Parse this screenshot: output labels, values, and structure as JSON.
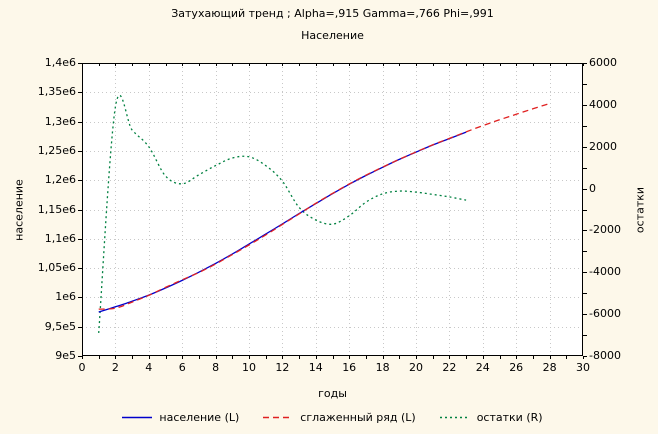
{
  "page": {
    "background": "#fdf8ea",
    "plot_background": "#ffffff",
    "frame_color": "#000000",
    "grid_color": "#c8c8c8",
    "text_color": "#000000"
  },
  "chart_data": {
    "type": "line",
    "title": "Затухающий тренд ; Alpha=,915 Gamma=,766 Phi=,991",
    "subtitle": "Население",
    "xlabel": "годы",
    "ylabel_left": "население",
    "ylabel_right": "остатки",
    "xlim": [
      0,
      30
    ],
    "ylim_left": [
      900000,
      1400000
    ],
    "ylim_right": [
      -8000,
      6000
    ],
    "grid": "dotted",
    "legend_position": "bottom",
    "x_ticks": {
      "values": [
        0,
        2,
        4,
        6,
        8,
        10,
        12,
        14,
        16,
        18,
        20,
        22,
        24,
        26,
        28,
        30
      ],
      "labels": [
        "0",
        "2",
        "4",
        "6",
        "8",
        "10",
        "12",
        "14",
        "16",
        "18",
        "20",
        "22",
        "24",
        "26",
        "28",
        "30"
      ],
      "minor_step": 1
    },
    "left_ticks": {
      "values": [
        1400000,
        1350000,
        1300000,
        1250000,
        1200000,
        1150000,
        1100000,
        1050000,
        1000000,
        950000,
        900000
      ],
      "labels": [
        "1,4e6",
        "1,35e6",
        "1,3e6",
        "1,25e6",
        "1,2e6",
        "1,15e6",
        "1,1e6",
        "1,05e6",
        "1e6",
        "9,5e5",
        "9e5"
      ]
    },
    "right_ticks": {
      "values": [
        6000,
        4000,
        2000,
        0,
        -2000,
        -4000,
        -6000,
        -8000
      ],
      "labels": [
        "6000",
        "4000",
        "2000",
        "0",
        "-2000",
        "-4000",
        "-6000",
        "-8000"
      ],
      "minor_step": 1000
    },
    "series": [
      {
        "id": "ostatki",
        "name": "остатки (R)",
        "axis": "right",
        "style": "dotted",
        "color": "#008040",
        "x": [
          1,
          2,
          3,
          4,
          5,
          6,
          7,
          8,
          9,
          10,
          11,
          12,
          13,
          14,
          15,
          16,
          17,
          18,
          19,
          20,
          21,
          22,
          23
        ],
        "values": [
          -6900,
          3900,
          2800,
          2000,
          600,
          230,
          660,
          1100,
          1460,
          1520,
          1100,
          350,
          -900,
          -1500,
          -1700,
          -1300,
          -650,
          -250,
          -120,
          -170,
          -280,
          -400,
          -550
        ]
      },
      {
        "id": "naselenie",
        "name": "население (L)",
        "axis": "left",
        "style": "solid",
        "color": "#0000cc",
        "x": [
          1,
          2,
          3,
          4,
          5,
          6,
          7,
          8,
          9,
          10,
          11,
          12,
          13,
          14,
          15,
          16,
          17,
          18,
          19,
          20,
          21,
          22,
          23
        ],
        "values": [
          975000,
          984000,
          993500,
          1004000,
          1016000,
          1029000,
          1043000,
          1058000,
          1074000,
          1091000,
          1108000,
          1125500,
          1143000,
          1160000,
          1177000,
          1193000,
          1208000,
          1222000,
          1235500,
          1248000,
          1260000,
          1271000,
          1282000
        ]
      },
      {
        "id": "sglazhenny-ryad",
        "name": "сглаженный ряд (L)",
        "axis": "left",
        "style": "dashed",
        "color": "#e02020",
        "x": [
          1,
          2,
          3,
          4,
          5,
          6,
          7,
          8,
          9,
          10,
          11,
          12,
          13,
          14,
          15,
          16,
          17,
          18,
          19,
          20,
          21,
          22,
          23,
          24,
          25,
          26,
          27,
          28
        ],
        "values": [
          980000,
          981500,
          992000,
          1003500,
          1017000,
          1030000,
          1042500,
          1057000,
          1073000,
          1089500,
          1106500,
          1124500,
          1142500,
          1160500,
          1177500,
          1193500,
          1208500,
          1222300,
          1235600,
          1248200,
          1260300,
          1271400,
          1282500,
          1293000,
          1303000,
          1312500,
          1321800,
          1330800
        ]
      }
    ],
    "legend_order": [
      "naselenie",
      "sglazhenny-ryad",
      "ostatki"
    ]
  }
}
